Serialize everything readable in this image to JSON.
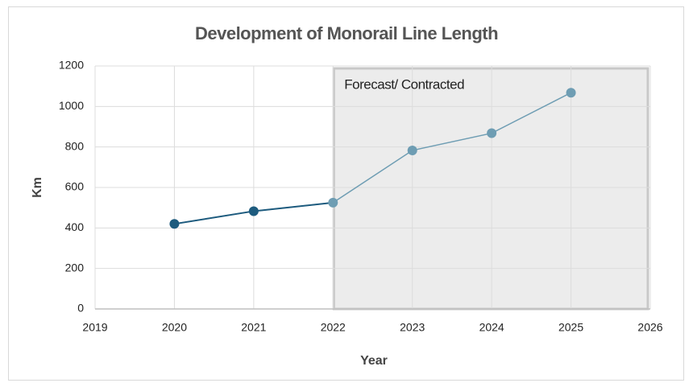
{
  "chart_data": {
    "type": "line",
    "title": "Development of Monorail Line Length",
    "x_label": "Year",
    "y_label": "Km",
    "x": [
      2020,
      2021,
      2022,
      2023,
      2024,
      2025
    ],
    "series": [
      {
        "color": "#1d5b7e",
        "values": [
          420,
          483,
          525,
          783,
          868,
          1068
        ]
      }
    ],
    "forecast_color": "#6e9db3",
    "forecast_region": {
      "xlim": [
        2022,
        2026
      ],
      "label": "Forecast/ Contracted"
    },
    "xlim": [
      2019,
      2026
    ],
    "xticks": [
      2019,
      2020,
      2021,
      2022,
      2023,
      2024,
      2025,
      2026
    ],
    "ylim": [
      0,
      1200
    ],
    "yticks": [
      0,
      200,
      400,
      600,
      800,
      1000,
      1200
    ],
    "grid": true
  }
}
